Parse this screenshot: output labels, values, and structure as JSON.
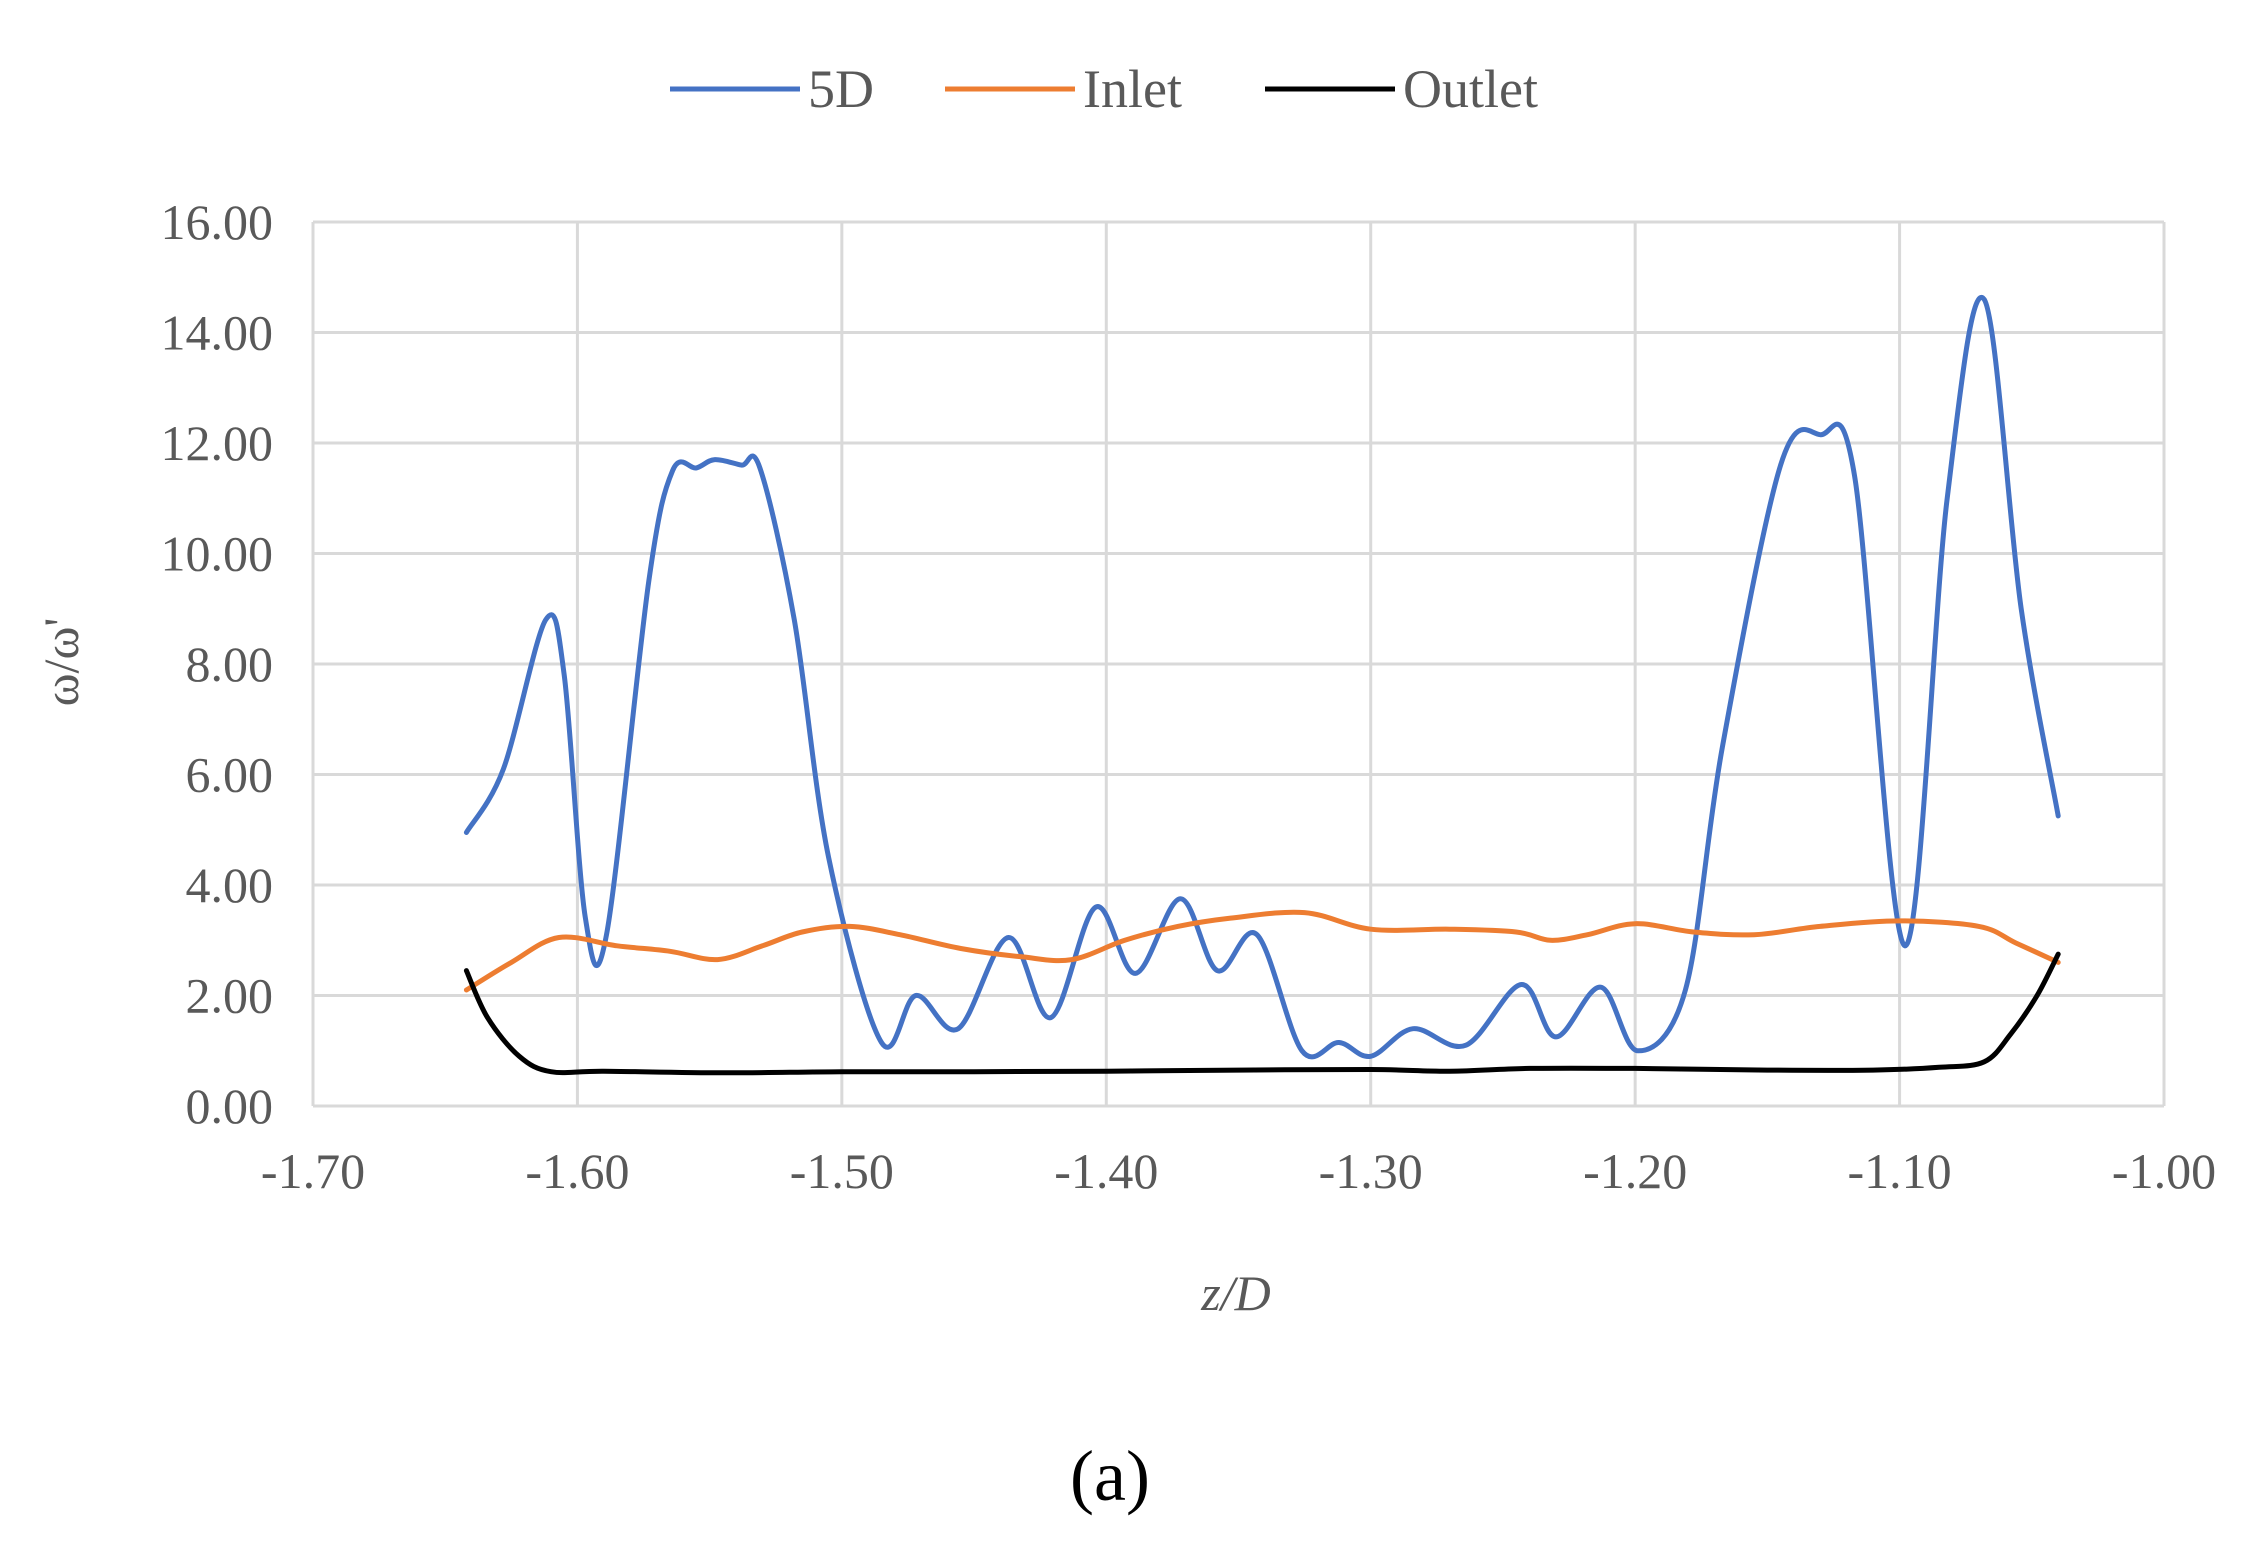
{
  "panel_label": "(a)",
  "chart_data": {
    "type": "line",
    "xlabel": "z/D",
    "ylabel": "ω/ω'",
    "xlim": [
      -1.7,
      -1.0
    ],
    "ylim": [
      0,
      16
    ],
    "x_ticks": [
      "-1.70",
      "-1.60",
      "-1.50",
      "-1.40",
      "-1.30",
      "-1.20",
      "-1.10",
      "-1.00"
    ],
    "y_ticks": [
      "0.00",
      "2.00",
      "4.00",
      "6.00",
      "8.00",
      "10.00",
      "12.00",
      "14.00",
      "16.00"
    ],
    "grid": true,
    "legend_position": "top-center",
    "series": [
      {
        "name": "5D",
        "color": "#4472C4",
        "points": [
          [
            -1.642,
            4.95
          ],
          [
            -1.628,
            6.1
          ],
          [
            -1.612,
            8.8
          ],
          [
            -1.605,
            7.8
          ],
          [
            -1.597,
            3.4
          ],
          [
            -1.589,
            3.1
          ],
          [
            -1.573,
            9.5
          ],
          [
            -1.564,
            11.5
          ],
          [
            -1.555,
            11.55
          ],
          [
            -1.548,
            11.7
          ],
          [
            -1.538,
            11.6
          ],
          [
            -1.531,
            11.55
          ],
          [
            -1.518,
            8.8
          ],
          [
            -1.505,
            4.5
          ],
          [
            -1.485,
            1.15
          ],
          [
            -1.472,
            2.0
          ],
          [
            -1.456,
            1.4
          ],
          [
            -1.437,
            3.05
          ],
          [
            -1.421,
            1.6
          ],
          [
            -1.404,
            3.6
          ],
          [
            -1.389,
            2.4
          ],
          [
            -1.372,
            3.75
          ],
          [
            -1.358,
            2.45
          ],
          [
            -1.343,
            3.1
          ],
          [
            -1.326,
            1.0
          ],
          [
            -1.312,
            1.15
          ],
          [
            -1.3,
            0.9
          ],
          [
            -1.284,
            1.4
          ],
          [
            -1.264,
            1.1
          ],
          [
            -1.243,
            2.2
          ],
          [
            -1.23,
            1.25
          ],
          [
            -1.213,
            2.15
          ],
          [
            -1.199,
            1.0
          ],
          [
            -1.181,
            2.1
          ],
          [
            -1.167,
            6.5
          ],
          [
            -1.145,
            11.6
          ],
          [
            -1.13,
            12.15
          ],
          [
            -1.117,
            11.4
          ],
          [
            -1.098,
            2.9
          ],
          [
            -1.082,
            11.0
          ],
          [
            -1.068,
            14.6
          ],
          [
            -1.054,
            9.0
          ],
          [
            -1.04,
            5.25
          ]
        ]
      },
      {
        "name": "Inlet",
        "color": "#ED7D31",
        "points": [
          [
            -1.642,
            2.1
          ],
          [
            -1.625,
            2.6
          ],
          [
            -1.607,
            3.05
          ],
          [
            -1.585,
            2.9
          ],
          [
            -1.565,
            2.8
          ],
          [
            -1.547,
            2.65
          ],
          [
            -1.53,
            2.9
          ],
          [
            -1.515,
            3.15
          ],
          [
            -1.497,
            3.25
          ],
          [
            -1.478,
            3.1
          ],
          [
            -1.455,
            2.85
          ],
          [
            -1.432,
            2.7
          ],
          [
            -1.413,
            2.65
          ],
          [
            -1.393,
            3.0
          ],
          [
            -1.373,
            3.25
          ],
          [
            -1.353,
            3.4
          ],
          [
            -1.325,
            3.5
          ],
          [
            -1.3,
            3.2
          ],
          [
            -1.27,
            3.2
          ],
          [
            -1.245,
            3.15
          ],
          [
            -1.232,
            3.0
          ],
          [
            -1.218,
            3.1
          ],
          [
            -1.2,
            3.3
          ],
          [
            -1.178,
            3.15
          ],
          [
            -1.155,
            3.1
          ],
          [
            -1.13,
            3.25
          ],
          [
            -1.1,
            3.35
          ],
          [
            -1.07,
            3.25
          ],
          [
            -1.056,
            2.95
          ],
          [
            -1.04,
            2.6
          ]
        ]
      },
      {
        "name": "Outlet",
        "color": "#000000",
        "points": [
          [
            -1.642,
            2.45
          ],
          [
            -1.634,
            1.6
          ],
          [
            -1.622,
            0.9
          ],
          [
            -1.61,
            0.62
          ],
          [
            -1.59,
            0.63
          ],
          [
            -1.545,
            0.6
          ],
          [
            -1.5,
            0.62
          ],
          [
            -1.45,
            0.62
          ],
          [
            -1.4,
            0.63
          ],
          [
            -1.35,
            0.65
          ],
          [
            -1.3,
            0.66
          ],
          [
            -1.27,
            0.63
          ],
          [
            -1.24,
            0.68
          ],
          [
            -1.2,
            0.68
          ],
          [
            -1.15,
            0.65
          ],
          [
            -1.11,
            0.65
          ],
          [
            -1.085,
            0.7
          ],
          [
            -1.068,
            0.8
          ],
          [
            -1.058,
            1.3
          ],
          [
            -1.048,
            2.0
          ],
          [
            -1.04,
            2.75
          ]
        ]
      }
    ]
  }
}
